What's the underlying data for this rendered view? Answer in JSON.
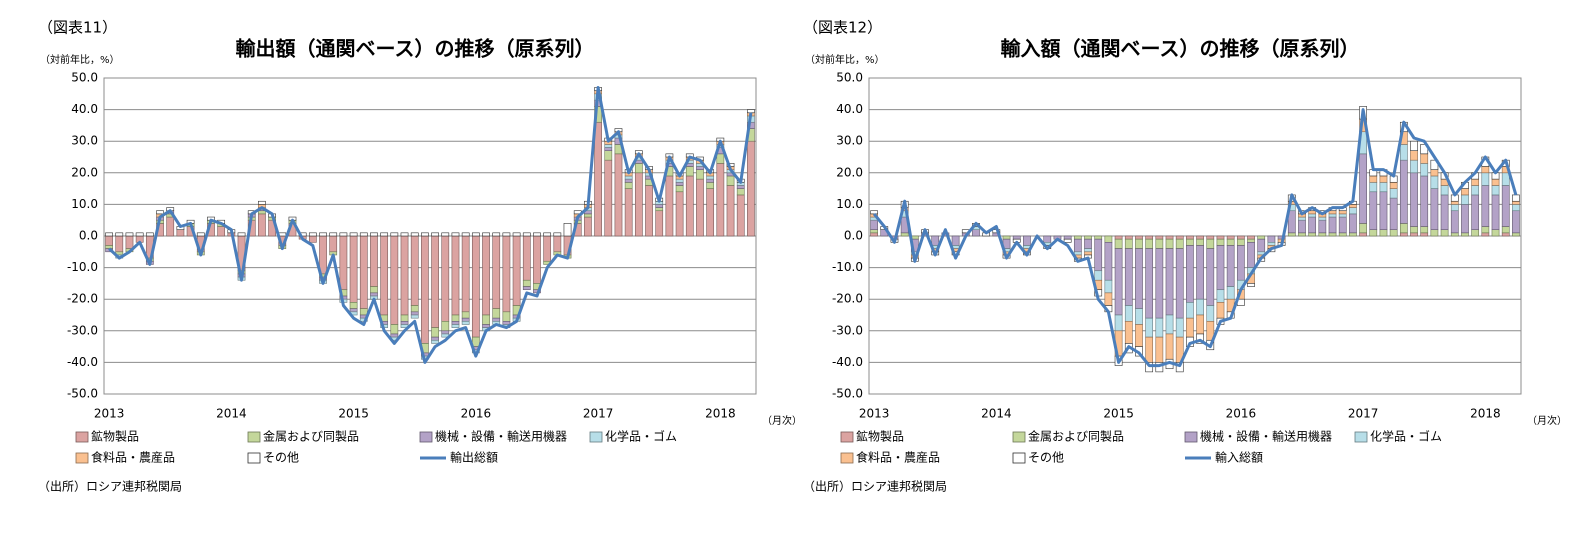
{
  "chart_data": [
    {
      "type": "bar",
      "stacked": true,
      "figure_label": "（図表11）",
      "title": "輸出額（通関ベース）の推移（原系列）",
      "y_axis_label": "（対前年比，%）",
      "x_axis_label": "（月次）",
      "source": "（出所）ロシア連邦税関局",
      "categories": [
        "2013",
        null,
        null,
        null,
        null,
        null,
        null,
        null,
        null,
        null,
        null,
        null,
        "2014",
        null,
        null,
        null,
        null,
        null,
        null,
        null,
        null,
        null,
        null,
        null,
        "2015",
        null,
        null,
        null,
        null,
        null,
        null,
        null,
        null,
        null,
        null,
        null,
        "2016",
        null,
        null,
        null,
        null,
        null,
        null,
        null,
        null,
        null,
        null,
        null,
        "2017",
        null,
        null,
        null,
        null,
        null,
        null,
        null,
        null,
        null,
        null,
        null,
        "2018",
        null,
        null,
        null
      ],
      "ylim": [
        -50,
        50
      ],
      "yticks": [
        {
          "value": -50,
          "label": "-50.0"
        },
        {
          "value": -40,
          "label": "-40.0"
        },
        {
          "value": -30,
          "label": "-30.0"
        },
        {
          "value": -20,
          "label": "-20.0"
        },
        {
          "value": -10,
          "label": "-10.0"
        },
        {
          "value": 0,
          "label": "0.0"
        },
        {
          "value": 10,
          "label": "10.0"
        },
        {
          "value": 20,
          "label": "20.0"
        },
        {
          "value": 30,
          "label": "30.0"
        },
        {
          "value": 40,
          "label": "40.0"
        },
        {
          "value": 50,
          "label": "50.0"
        }
      ],
      "grid": true,
      "series": [
        {
          "name": "鉱物製品",
          "type": "bar",
          "color": "#dba3a1",
          "values": [
            -3,
            -5,
            -4,
            -2,
            -7,
            4,
            6,
            2,
            3,
            -5,
            4,
            3,
            1,
            -11,
            5,
            7,
            5,
            -3,
            4,
            -1,
            -2,
            -12,
            -5,
            -17,
            -21,
            -23,
            -16,
            -25,
            -28,
            -25,
            -22,
            -34,
            -29,
            -27,
            -25,
            -24,
            -32,
            -25,
            -23,
            -24,
            -22,
            -14,
            -15,
            -8,
            -5,
            -6,
            4,
            6,
            36,
            24,
            26,
            15,
            20,
            16,
            8,
            19,
            14,
            19,
            18,
            15,
            23,
            16,
            13,
            30
          ]
        },
        {
          "name": "金属および同製品",
          "type": "bar",
          "color": "#c4d79b",
          "values": [
            -1,
            -1,
            -1,
            0,
            -1,
            1,
            1,
            0,
            1,
            -1,
            1,
            1,
            0,
            -1,
            1,
            1,
            1,
            -1,
            1,
            0,
            0,
            -1,
            -1,
            -2,
            -2,
            -2,
            -2,
            -2,
            -3,
            -2,
            -2,
            -3,
            -3,
            -3,
            -2,
            -2,
            -3,
            -3,
            -3,
            -3,
            -3,
            -2,
            -2,
            -1,
            -1,
            -1,
            1,
            1,
            5,
            3,
            3,
            2,
            3,
            2,
            1,
            3,
            2,
            3,
            3,
            2,
            3,
            3,
            2,
            4
          ]
        },
        {
          "name": "機械・設備・輸送用機器",
          "type": "bar",
          "color": "#b3a2c7",
          "values": [
            -1,
            0,
            0,
            0,
            -1,
            1,
            1,
            0,
            0,
            0,
            0,
            0,
            0,
            -1,
            1,
            1,
            0,
            0,
            0,
            0,
            0,
            -1,
            0,
            -1,
            -1,
            -1,
            -1,
            -1,
            -1,
            -1,
            -1,
            -1,
            -1,
            -1,
            -1,
            -1,
            -1,
            -1,
            -1,
            -1,
            -1,
            -1,
            -1,
            0,
            0,
            0,
            1,
            1,
            2,
            1,
            2,
            1,
            1,
            1,
            1,
            1,
            1,
            1,
            1,
            1,
            2,
            1,
            1,
            2
          ]
        },
        {
          "name": "化学品・ゴム",
          "type": "bar",
          "color": "#b7dee8",
          "values": [
            0,
            -1,
            0,
            0,
            0,
            0,
            0,
            0,
            0,
            0,
            0,
            0,
            0,
            -1,
            0,
            0,
            0,
            0,
            0,
            0,
            0,
            -1,
            0,
            -1,
            -1,
            -1,
            -1,
            -1,
            -1,
            -1,
            -1,
            -1,
            -1,
            -1,
            -1,
            -1,
            -1,
            -1,
            -1,
            -1,
            -1,
            0,
            0,
            0,
            0,
            0,
            0,
            1,
            2,
            1,
            1,
            1,
            1,
            1,
            1,
            1,
            1,
            1,
            1,
            1,
            1,
            1,
            1,
            2
          ]
        },
        {
          "name": "食料品・農産品",
          "type": "bar",
          "color": "#fac090",
          "values": [
            0,
            0,
            0,
            0,
            0,
            1,
            0,
            0,
            0,
            0,
            0,
            0,
            0,
            0,
            0,
            1,
            0,
            0,
            0,
            0,
            0,
            0,
            0,
            0,
            0,
            0,
            0,
            0,
            0,
            0,
            0,
            0,
            0,
            0,
            0,
            0,
            0,
            0,
            0,
            0,
            0,
            0,
            0,
            0,
            0,
            0,
            1,
            1,
            1,
            1,
            1,
            1,
            1,
            1,
            0,
            1,
            1,
            1,
            1,
            1,
            1,
            1,
            0,
            1
          ]
        },
        {
          "name": "その他",
          "type": "bar",
          "color": "#ffffff",
          "values": [
            1,
            1,
            1,
            1,
            1,
            1,
            1,
            1,
            1,
            1,
            1,
            1,
            1,
            1,
            1,
            1,
            1,
            1,
            1,
            1,
            1,
            1,
            1,
            1,
            1,
            1,
            1,
            1,
            1,
            1,
            1,
            1,
            1,
            1,
            1,
            1,
            1,
            1,
            1,
            1,
            1,
            1,
            1,
            1,
            1,
            4,
            1,
            1,
            1,
            1,
            1,
            1,
            1,
            1,
            1,
            1,
            1,
            1,
            1,
            1,
            1,
            1,
            1,
            1
          ]
        },
        {
          "name": "輸出総額",
          "type": "line",
          "color": "#4a7ebb",
          "values": [
            -4,
            -7,
            -5,
            -2,
            -9,
            6,
            8,
            3,
            4,
            -6,
            5,
            4,
            2,
            -14,
            7,
            9,
            7,
            -4,
            5,
            -1,
            -3,
            -15,
            -6,
            -22,
            -26,
            -28,
            -20,
            -30,
            -34,
            -30,
            -27,
            -40,
            -35,
            -33,
            -30,
            -29,
            -38,
            -30,
            -28,
            -29,
            -27,
            -18,
            -19,
            -10,
            -6,
            -7,
            6,
            9,
            47,
            30,
            33,
            20,
            26,
            21,
            11,
            25,
            19,
            25,
            24,
            20,
            30,
            21,
            17,
            39
          ]
        }
      ]
    },
    {
      "type": "bar",
      "stacked": true,
      "figure_label": "（図表12）",
      "title": "輸入額（通関ベース）の推移（原系列）",
      "y_axis_label": "（対前年比，%）",
      "x_axis_label": "（月次）",
      "source": "（出所）ロシア連邦税関局",
      "categories": [
        "2013",
        null,
        null,
        null,
        null,
        null,
        null,
        null,
        null,
        null,
        null,
        null,
        "2014",
        null,
        null,
        null,
        null,
        null,
        null,
        null,
        null,
        null,
        null,
        null,
        "2015",
        null,
        null,
        null,
        null,
        null,
        null,
        null,
        null,
        null,
        null,
        null,
        "2016",
        null,
        null,
        null,
        null,
        null,
        null,
        null,
        null,
        null,
        null,
        null,
        "2017",
        null,
        null,
        null,
        null,
        null,
        null,
        null,
        null,
        null,
        null,
        null,
        "2018",
        null,
        null,
        null
      ],
      "ylim": [
        -50,
        50
      ],
      "yticks": [
        {
          "value": -50,
          "label": "-50.0"
        },
        {
          "value": -40,
          "label": "-40.0"
        },
        {
          "value": -30,
          "label": "-30.0"
        },
        {
          "value": -20,
          "label": "-20.0"
        },
        {
          "value": -10,
          "label": "-10.0"
        },
        {
          "value": 0,
          "label": "0.0"
        },
        {
          "value": 10,
          "label": "10.0"
        },
        {
          "value": 20,
          "label": "20.0"
        },
        {
          "value": 30,
          "label": "30.0"
        },
        {
          "value": 40,
          "label": "40.0"
        },
        {
          "value": 50,
          "label": "50.0"
        }
      ],
      "grid": true,
      "series": [
        {
          "name": "鉱物製品",
          "type": "bar",
          "color": "#dba3a1",
          "values": [
            1,
            0,
            0,
            0,
            0,
            0,
            0,
            0,
            0,
            0,
            0,
            0,
            0,
            0,
            0,
            0,
            0,
            0,
            0,
            0,
            0,
            0,
            0,
            0,
            -1,
            -1,
            -1,
            -1,
            -1,
            -1,
            -1,
            -1,
            -1,
            -1,
            -1,
            -1,
            -1,
            -1,
            0,
            0,
            0,
            0,
            0,
            0,
            0,
            0,
            0,
            0,
            1,
            0,
            0,
            0,
            1,
            1,
            1,
            0,
            0,
            0,
            0,
            0,
            1,
            0,
            1,
            0
          ]
        },
        {
          "name": "金属および同製品",
          "type": "bar",
          "color": "#c4d79b",
          "values": [
            1,
            0,
            0,
            1,
            -1,
            0,
            0,
            0,
            0,
            0,
            0,
            0,
            0,
            -1,
            0,
            0,
            0,
            0,
            0,
            0,
            -1,
            -1,
            -1,
            -2,
            -3,
            -3,
            -3,
            -3,
            -3,
            -3,
            -3,
            -2,
            -2,
            -3,
            -2,
            -2,
            -2,
            -1,
            -1,
            0,
            0,
            1,
            1,
            1,
            1,
            1,
            1,
            1,
            3,
            2,
            2,
            2,
            3,
            2,
            2,
            2,
            2,
            1,
            1,
            2,
            2,
            2,
            2,
            1
          ]
        },
        {
          "name": "機械・設備・輸送用機器",
          "type": "bar",
          "color": "#b3a2c7",
          "values": [
            3,
            2,
            -1,
            5,
            -4,
            1,
            -3,
            1,
            -3,
            1,
            2,
            0,
            1,
            -3,
            -1,
            -3,
            0,
            -2,
            -1,
            -1,
            -4,
            -3,
            -10,
            -12,
            -21,
            -18,
            -19,
            -22,
            -22,
            -21,
            -22,
            -18,
            -17,
            -18,
            -14,
            -13,
            -11,
            -8,
            -4,
            -2,
            -1,
            7,
            4,
            5,
            4,
            5,
            5,
            6,
            22,
            12,
            12,
            10,
            20,
            17,
            16,
            13,
            11,
            7,
            9,
            11,
            13,
            11,
            13,
            7
          ]
        },
        {
          "name": "化学品・ゴム",
          "type": "bar",
          "color": "#b7dee8",
          "values": [
            1,
            0,
            0,
            2,
            -1,
            0,
            -1,
            0,
            -1,
            0,
            1,
            0,
            0,
            -1,
            0,
            -1,
            0,
            -1,
            0,
            0,
            -1,
            -1,
            -3,
            -4,
            -5,
            -5,
            -5,
            -6,
            -6,
            -6,
            -6,
            -5,
            -5,
            -5,
            -4,
            -4,
            -3,
            -2,
            -1,
            -1,
            0,
            2,
            1,
            1,
            1,
            1,
            1,
            2,
            7,
            3,
            3,
            3,
            5,
            4,
            4,
            4,
            3,
            2,
            3,
            3,
            4,
            3,
            4,
            2
          ]
        },
        {
          "name": "食料品・農産品",
          "type": "bar",
          "color": "#fac090",
          "values": [
            1,
            0,
            0,
            1,
            -1,
            0,
            -1,
            0,
            -1,
            0,
            0,
            0,
            0,
            -1,
            0,
            -1,
            0,
            0,
            0,
            0,
            -1,
            -1,
            -3,
            -4,
            -8,
            -7,
            -7,
            -8,
            -8,
            -8,
            -8,
            -6,
            -6,
            -6,
            -5,
            -4,
            -3,
            -3,
            -1,
            -1,
            -1,
            1,
            1,
            1,
            1,
            1,
            1,
            1,
            4,
            2,
            2,
            2,
            4,
            3,
            3,
            2,
            2,
            1,
            2,
            2,
            2,
            2,
            2,
            1
          ]
        },
        {
          "name": "その他",
          "type": "bar",
          "color": "#ffffff",
          "values": [
            1,
            1,
            -1,
            2,
            -1,
            1,
            -1,
            0,
            -1,
            1,
            1,
            1,
            1,
            -1,
            -1,
            -1,
            0,
            -1,
            0,
            -1,
            -1,
            -1,
            -2,
            -2,
            -3,
            -3,
            -3,
            -3,
            -3,
            -3,
            -3,
            -3,
            -3,
            -3,
            -2,
            -2,
            -2,
            -1,
            -1,
            -1,
            -1,
            2,
            1,
            1,
            1,
            1,
            1,
            1,
            4,
            2,
            2,
            2,
            3,
            3,
            3,
            3,
            2,
            2,
            2,
            2,
            3,
            2,
            2,
            2
          ]
        },
        {
          "name": "輸入総額",
          "type": "line",
          "color": "#4a7ebb",
          "values": [
            7,
            3,
            -2,
            11,
            -8,
            2,
            -6,
            2,
            -7,
            0,
            4,
            1,
            3,
            -7,
            -2,
            -6,
            0,
            -4,
            -1,
            -3,
            -8,
            -7,
            -20,
            -24,
            -40,
            -35,
            -37,
            -41,
            -41,
            -40,
            -41,
            -34,
            -33,
            -35,
            -27,
            -26,
            -17,
            -12,
            -7,
            -4,
            -3,
            13,
            7,
            9,
            7,
            9,
            9,
            11,
            40,
            21,
            21,
            19,
            36,
            31,
            30,
            25,
            20,
            13,
            17,
            20,
            25,
            20,
            24,
            13
          ]
        }
      ]
    }
  ]
}
